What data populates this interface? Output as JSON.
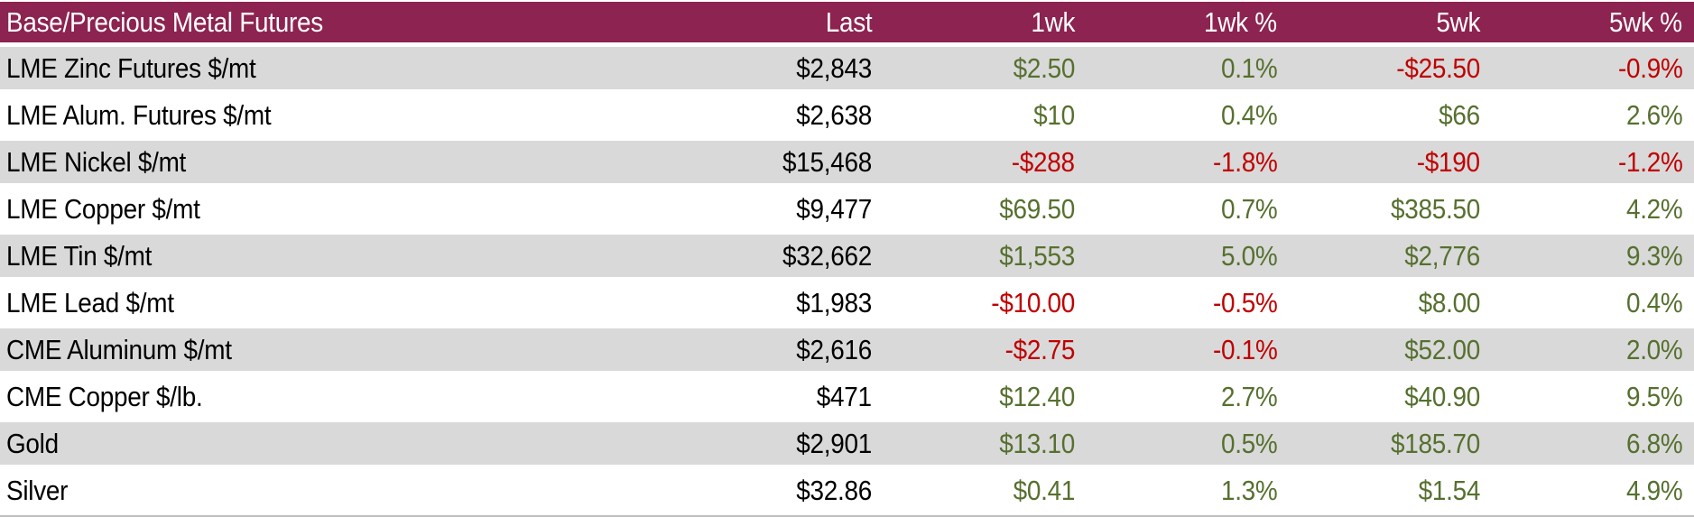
{
  "chart_data": {
    "type": "table",
    "title": "Base/Precious Metal Futures",
    "columns": [
      "Last",
      "1wk",
      "1wk %",
      "5wk",
      "5wk %"
    ],
    "rows": [
      {
        "name": "LME Zinc Futures $/mt",
        "values": [
          "$2,843",
          "$2.50",
          "0.1%",
          "-$25.50",
          "-0.9%"
        ]
      },
      {
        "name": "LME Alum. Futures $/mt",
        "values": [
          "$2,638",
          "$10",
          "0.4%",
          "$66",
          "2.6%"
        ]
      },
      {
        "name": "LME Nickel $/mt",
        "values": [
          "$15,468",
          "-$288",
          "-1.8%",
          "-$190",
          "-1.2%"
        ]
      },
      {
        "name": "LME Copper $/mt",
        "values": [
          "$9,477",
          "$69.50",
          "0.7%",
          "$385.50",
          "4.2%"
        ]
      },
      {
        "name": "LME Tin $/mt",
        "values": [
          "$32,662",
          "$1,553",
          "5.0%",
          "$2,776",
          "9.3%"
        ]
      },
      {
        "name": "LME Lead $/mt",
        "values": [
          "$1,983",
          "-$10.00",
          "-0.5%",
          "$8.00",
          "0.4%"
        ]
      },
      {
        "name": "CME Aluminum $/mt",
        "values": [
          "$2,616",
          "-$2.75",
          "-0.1%",
          "$52.00",
          "2.0%"
        ]
      },
      {
        "name": "CME Copper $/lb.",
        "values": [
          "$471",
          "$12.40",
          "2.7%",
          "$40.90",
          "9.5%"
        ]
      },
      {
        "name": "Gold",
        "values": [
          "$2,901",
          "$13.10",
          "0.5%",
          "$185.70",
          "6.8%"
        ]
      },
      {
        "name": "Silver",
        "values": [
          "$32.86",
          "$0.41",
          "1.3%",
          "$1.54",
          "4.9%"
        ]
      }
    ],
    "colors": {
      "header_bg": "#8C2350",
      "header_text": "#FFFFFF",
      "alt_row_bg": "#D9D9D9",
      "row_bg": "#FFFFFF",
      "positive": "#56702F",
      "negative": "#C00000",
      "neutral_text": "#000000"
    },
    "layout": {
      "legend": "none",
      "grid": "off",
      "striped": true
    }
  }
}
